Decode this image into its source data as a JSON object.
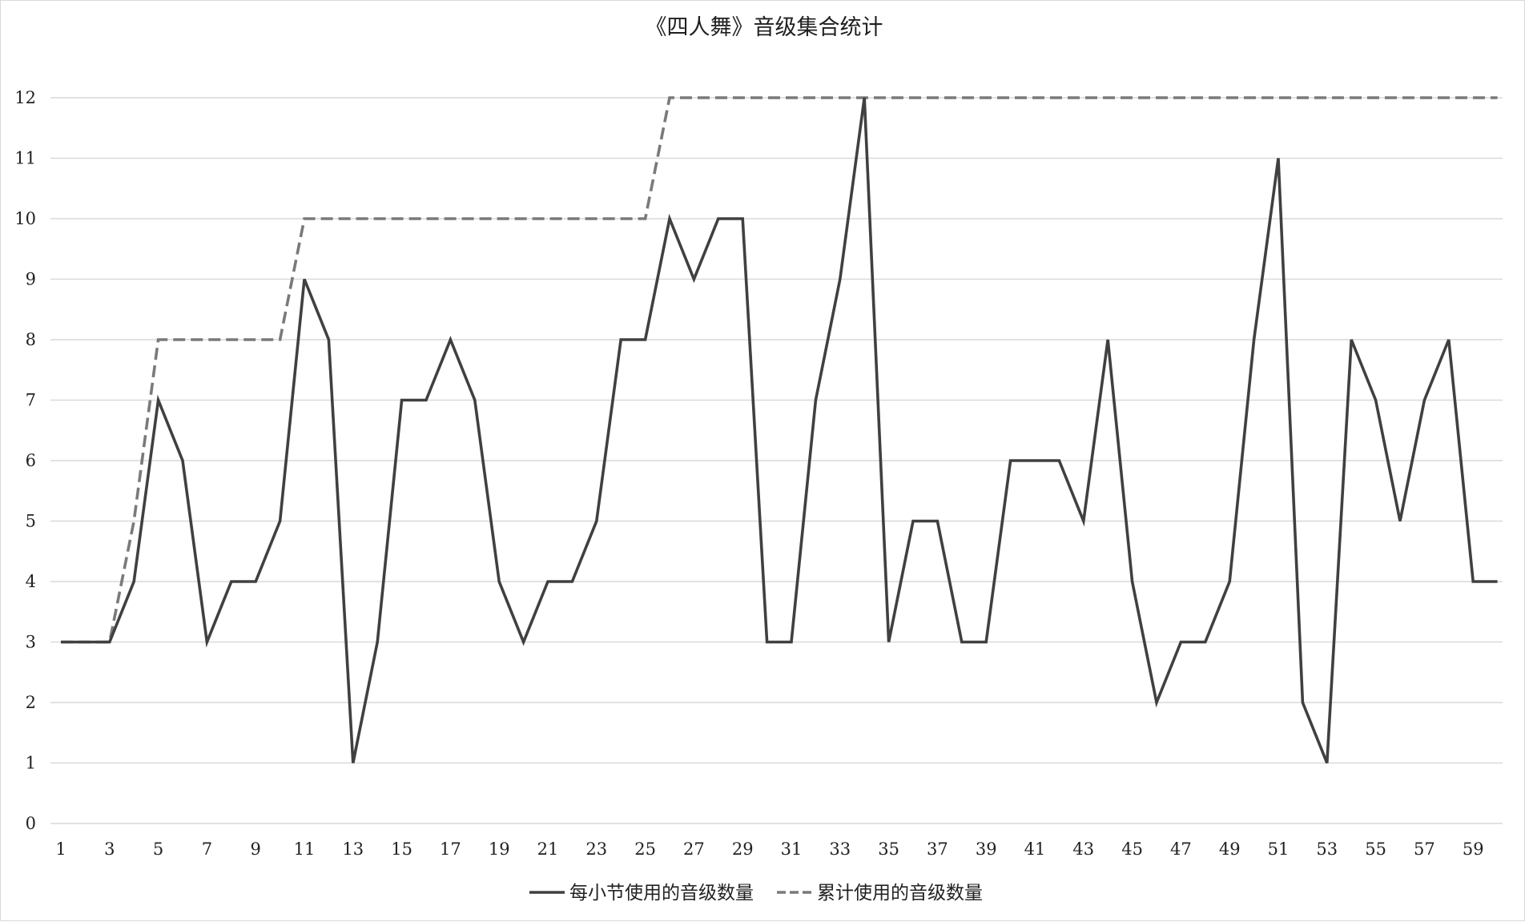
{
  "chart_data": {
    "type": "line",
    "title": "《四人舞》音级集合统计",
    "xlabel": "",
    "ylabel": "",
    "x": [
      1,
      2,
      3,
      4,
      5,
      6,
      7,
      8,
      9,
      10,
      11,
      12,
      13,
      14,
      15,
      16,
      17,
      18,
      19,
      20,
      21,
      22,
      23,
      24,
      25,
      26,
      27,
      28,
      29,
      30,
      31,
      32,
      33,
      34,
      35,
      36,
      37,
      38,
      39,
      40,
      41,
      42,
      43,
      44,
      45,
      46,
      47,
      48,
      49,
      50,
      51,
      52,
      53,
      54,
      55,
      56,
      57,
      58,
      59,
      60
    ],
    "x_tick_labels": [
      "1",
      "3",
      "5",
      "7",
      "9",
      "11",
      "13",
      "15",
      "17",
      "19",
      "21",
      "23",
      "25",
      "27",
      "29",
      "31",
      "33",
      "35",
      "37",
      "39",
      "41",
      "43",
      "45",
      "47",
      "49",
      "51",
      "53",
      "55",
      "57",
      "59"
    ],
    "ylim": [
      0,
      12
    ],
    "y_tick_labels": [
      "0",
      "1",
      "2",
      "3",
      "4",
      "5",
      "6",
      "7",
      "8",
      "9",
      "10",
      "11",
      "12"
    ],
    "grid": true,
    "legend_position": "bottom",
    "series": [
      {
        "name": "每小节使用的音级数量",
        "style": "solid",
        "color": "#404040",
        "values": [
          3,
          3,
          3,
          4,
          7,
          6,
          3,
          4,
          4,
          5,
          9,
          8,
          1,
          3,
          7,
          7,
          8,
          7,
          4,
          3,
          4,
          4,
          5,
          8,
          8,
          10,
          9,
          10,
          10,
          3,
          3,
          7,
          9,
          12,
          3,
          5,
          5,
          3,
          3,
          6,
          6,
          6,
          5,
          8,
          4,
          2,
          3,
          3,
          4,
          8,
          11,
          2,
          1,
          8,
          7,
          5,
          7,
          8,
          4,
          4
        ]
      },
      {
        "name": "累计使用的音级数量",
        "style": "dashed",
        "color": "#7a7a7a",
        "values": [
          3,
          3,
          3,
          5,
          8,
          8,
          8,
          8,
          8,
          8,
          10,
          10,
          10,
          10,
          10,
          10,
          10,
          10,
          10,
          10,
          10,
          10,
          10,
          10,
          10,
          12,
          12,
          12,
          12,
          12,
          12,
          12,
          12,
          12,
          12,
          12,
          12,
          12,
          12,
          12,
          12,
          12,
          12,
          12,
          12,
          12,
          12,
          12,
          12,
          12,
          12,
          12,
          12,
          12,
          12,
          12,
          12,
          12,
          12,
          12
        ]
      }
    ]
  }
}
